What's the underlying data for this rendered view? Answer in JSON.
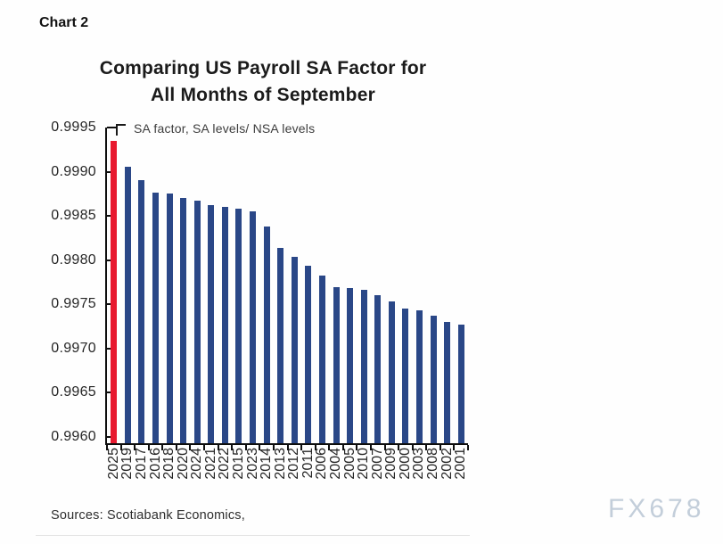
{
  "page": {
    "chart_label": "Chart 2",
    "title_line1": "Comparing US Payroll SA Factor for",
    "title_line2": "All Months of September",
    "subtitle": "SA factor, SA levels/ NSA levels",
    "source": "Sources: Scotiabank Economics,",
    "watermark": "FX678"
  },
  "chart_data": {
    "type": "bar",
    "title": "Comparing US Payroll SA Factor for All Months of September",
    "subtitle": "SA factor, SA levels/ NSA levels",
    "categories": [
      "2025",
      "2019",
      "2017",
      "2016",
      "2018",
      "2020",
      "2024",
      "2021",
      "2022",
      "2015",
      "2023",
      "2014",
      "2013",
      "2012",
      "2011",
      "2006",
      "2004",
      "2005",
      "2010",
      "2007",
      "2009",
      "2000",
      "2003",
      "2008",
      "2002",
      "2001"
    ],
    "values": [
      0.99935,
      0.99906,
      0.99891,
      0.99876,
      0.99875,
      0.9987,
      0.99867,
      0.99862,
      0.9986,
      0.99858,
      0.99855,
      0.99838,
      0.99814,
      0.99804,
      0.99794,
      0.99783,
      0.9977,
      0.99768,
      0.99766,
      0.9976,
      0.99753,
      0.99745,
      0.99743,
      0.99737,
      0.9973,
      0.99727
    ],
    "highlight_category": "2025",
    "colors": {
      "bar": "#2a4787",
      "highlight_bar": "#e8192f",
      "axis": "#0e0e0e"
    },
    "ylim": [
      0.996,
      0.9995
    ],
    "ytick_labels": [
      "0.9995",
      "0.9990",
      "0.9985",
      "0.9980",
      "0.9975",
      "0.9970",
      "0.9965",
      "0.9960"
    ],
    "xlabel": "",
    "ylabel": "SA factor, SA levels/ NSA levels",
    "grid": false,
    "legend_position": "none",
    "sorted": "descending by value"
  }
}
